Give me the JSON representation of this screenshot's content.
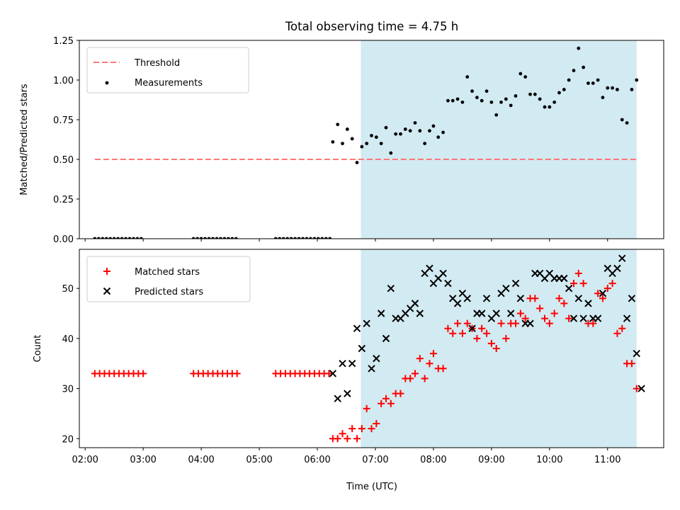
{
  "title": "Total observing time = 4.75 h",
  "xlabel": "Time (UTC)",
  "x_tick_labels": [
    "02:00",
    "03:00",
    "04:00",
    "05:00",
    "06:00",
    "07:00",
    "08:00",
    "09:00",
    "10:00",
    "11:00"
  ],
  "colors": {
    "shade": "#add8e6",
    "threshold": "#ff7777",
    "matched": "#ff0000",
    "predicted": "#000000",
    "measurement": "#000000"
  },
  "chart_data": [
    {
      "type": "scatter",
      "ylabel": "Matched/Predicted stars",
      "xlim": [
        "01:54",
        "11:58"
      ],
      "ylim": [
        0,
        1.25
      ],
      "y_tick_labels": [
        "0.00",
        "0.25",
        "0.50",
        "0.75",
        "1.00",
        "1.25"
      ],
      "shaded_interval": [
        "06:45",
        "11:30"
      ],
      "legend": {
        "placement": "upper-left",
        "entries": [
          "Threshold",
          "Measurements"
        ]
      },
      "threshold": {
        "name": "Threshold",
        "value": 0.5,
        "x_range": [
          "02:10",
          "11:30"
        ]
      },
      "measurements": {
        "name": "Measurements",
        "points": [
          [
            "02:10",
            0
          ],
          [
            "02:14",
            0
          ],
          [
            "02:18",
            0
          ],
          [
            "02:22",
            0
          ],
          [
            "02:26",
            0
          ],
          [
            "02:30",
            0
          ],
          [
            "02:34",
            0
          ],
          [
            "02:38",
            0
          ],
          [
            "02:42",
            0
          ],
          [
            "02:46",
            0
          ],
          [
            "02:50",
            0
          ],
          [
            "02:54",
            0
          ],
          [
            "02:58",
            0
          ],
          [
            "03:52",
            0
          ],
          [
            "03:56",
            0
          ],
          [
            "04:00",
            0
          ],
          [
            "04:04",
            0
          ],
          [
            "04:08",
            0
          ],
          [
            "04:12",
            0
          ],
          [
            "04:16",
            0
          ],
          [
            "04:20",
            0
          ],
          [
            "04:24",
            0
          ],
          [
            "04:28",
            0
          ],
          [
            "04:32",
            0
          ],
          [
            "04:36",
            0
          ],
          [
            "05:17",
            0
          ],
          [
            "05:21",
            0
          ],
          [
            "05:25",
            0
          ],
          [
            "05:29",
            0
          ],
          [
            "05:33",
            0
          ],
          [
            "05:37",
            0
          ],
          [
            "05:41",
            0
          ],
          [
            "05:45",
            0
          ],
          [
            "05:49",
            0
          ],
          [
            "05:53",
            0
          ],
          [
            "05:57",
            0
          ],
          [
            "06:01",
            0
          ],
          [
            "06:05",
            0
          ],
          [
            "06:09",
            0
          ],
          [
            "06:13",
            0
          ],
          [
            "06:16",
            0.61
          ],
          [
            "06:21",
            0.72
          ],
          [
            "06:26",
            0.6
          ],
          [
            "06:31",
            0.69
          ],
          [
            "06:36",
            0.63
          ],
          [
            "06:41",
            0.48
          ],
          [
            "06:46",
            0.58
          ],
          [
            "06:51",
            0.6
          ],
          [
            "06:56",
            0.65
          ],
          [
            "07:01",
            0.64
          ],
          [
            "07:06",
            0.6
          ],
          [
            "07:11",
            0.7
          ],
          [
            "07:16",
            0.54
          ],
          [
            "07:21",
            0.66
          ],
          [
            "07:26",
            0.66
          ],
          [
            "07:31",
            0.69
          ],
          [
            "07:36",
            0.68
          ],
          [
            "07:41",
            0.73
          ],
          [
            "07:46",
            0.68
          ],
          [
            "07:51",
            0.6
          ],
          [
            "07:56",
            0.68
          ],
          [
            "08:00",
            0.71
          ],
          [
            "08:05",
            0.64
          ],
          [
            "08:10",
            0.67
          ],
          [
            "08:15",
            0.87
          ],
          [
            "08:20",
            0.87
          ],
          [
            "08:25",
            0.88
          ],
          [
            "08:30",
            0.86
          ],
          [
            "08:35",
            1.02
          ],
          [
            "08:40",
            0.93
          ],
          [
            "08:45",
            0.89
          ],
          [
            "08:50",
            0.87
          ],
          [
            "08:55",
            0.93
          ],
          [
            "09:00",
            0.86
          ],
          [
            "09:05",
            0.78
          ],
          [
            "09:10",
            0.86
          ],
          [
            "09:15",
            0.88
          ],
          [
            "09:20",
            0.84
          ],
          [
            "09:25",
            0.9
          ],
          [
            "09:30",
            1.04
          ],
          [
            "09:35",
            1.02
          ],
          [
            "09:40",
            0.91
          ],
          [
            "09:45",
            0.91
          ],
          [
            "09:50",
            0.88
          ],
          [
            "09:55",
            0.83
          ],
          [
            "10:00",
            0.83
          ],
          [
            "10:05",
            0.86
          ],
          [
            "10:10",
            0.92
          ],
          [
            "10:15",
            0.94
          ],
          [
            "10:20",
            1.0
          ],
          [
            "10:25",
            1.06
          ],
          [
            "10:30",
            1.2
          ],
          [
            "10:35",
            1.08
          ],
          [
            "10:40",
            0.98
          ],
          [
            "10:45",
            0.98
          ],
          [
            "10:50",
            1.0
          ],
          [
            "10:55",
            0.89
          ],
          [
            "11:00",
            0.95
          ],
          [
            "11:05",
            0.95
          ],
          [
            "11:10",
            0.94
          ],
          [
            "11:15",
            0.75
          ],
          [
            "11:20",
            0.73
          ],
          [
            "11:25",
            0.94
          ],
          [
            "11:30",
            1.0
          ]
        ]
      }
    },
    {
      "type": "scatter",
      "ylabel": "Count",
      "xlim": [
        "01:54",
        "11:58"
      ],
      "ylim": [
        18.2,
        57.8
      ],
      "y_tick_labels": [
        "20",
        "30",
        "40",
        "50"
      ],
      "shaded_interval": [
        "06:45",
        "11:30"
      ],
      "legend": {
        "placement": "upper-left",
        "entries": [
          "Matched stars",
          "Predicted stars"
        ]
      },
      "series": [
        {
          "name": "Matched stars",
          "marker": "plus",
          "points": [
            [
              "02:10",
              33
            ],
            [
              "02:15",
              33
            ],
            [
              "02:20",
              33
            ],
            [
              "02:25",
              33
            ],
            [
              "02:30",
              33
            ],
            [
              "02:35",
              33
            ],
            [
              "02:40",
              33
            ],
            [
              "02:45",
              33
            ],
            [
              "02:50",
              33
            ],
            [
              "02:55",
              33
            ],
            [
              "03:00",
              33
            ],
            [
              "03:52",
              33
            ],
            [
              "03:57",
              33
            ],
            [
              "04:02",
              33
            ],
            [
              "04:07",
              33
            ],
            [
              "04:12",
              33
            ],
            [
              "04:17",
              33
            ],
            [
              "04:22",
              33
            ],
            [
              "04:27",
              33
            ],
            [
              "04:32",
              33
            ],
            [
              "04:37",
              33
            ],
            [
              "05:17",
              33
            ],
            [
              "05:22",
              33
            ],
            [
              "05:27",
              33
            ],
            [
              "05:32",
              33
            ],
            [
              "05:37",
              33
            ],
            [
              "05:42",
              33
            ],
            [
              "05:47",
              33
            ],
            [
              "05:52",
              33
            ],
            [
              "05:57",
              33
            ],
            [
              "06:02",
              33
            ],
            [
              "06:07",
              33
            ],
            [
              "06:12",
              33
            ],
            [
              "06:16",
              20
            ],
            [
              "06:21",
              20
            ],
            [
              "06:26",
              21
            ],
            [
              "06:31",
              20
            ],
            [
              "06:36",
              22
            ],
            [
              "06:41",
              20
            ],
            [
              "06:46",
              22
            ],
            [
              "06:51",
              26
            ],
            [
              "06:56",
              22
            ],
            [
              "07:01",
              23
            ],
            [
              "07:06",
              27
            ],
            [
              "07:11",
              28
            ],
            [
              "07:16",
              27
            ],
            [
              "07:21",
              29
            ],
            [
              "07:26",
              29
            ],
            [
              "07:31",
              32
            ],
            [
              "07:36",
              32
            ],
            [
              "07:41",
              33
            ],
            [
              "07:46",
              36
            ],
            [
              "07:51",
              32
            ],
            [
              "07:56",
              35
            ],
            [
              "08:00",
              37
            ],
            [
              "08:05",
              34
            ],
            [
              "08:10",
              34
            ],
            [
              "08:15",
              42
            ],
            [
              "08:20",
              41
            ],
            [
              "08:25",
              43
            ],
            [
              "08:30",
              41
            ],
            [
              "08:35",
              43
            ],
            [
              "08:40",
              42
            ],
            [
              "08:45",
              40
            ],
            [
              "08:50",
              42
            ],
            [
              "08:55",
              41
            ],
            [
              "09:00",
              39
            ],
            [
              "09:05",
              38
            ],
            [
              "09:10",
              43
            ],
            [
              "09:15",
              40
            ],
            [
              "09:20",
              43
            ],
            [
              "09:25",
              43
            ],
            [
              "09:30",
              45
            ],
            [
              "09:35",
              44
            ],
            [
              "09:40",
              48
            ],
            [
              "09:45",
              48
            ],
            [
              "09:50",
              46
            ],
            [
              "09:55",
              44
            ],
            [
              "10:00",
              43
            ],
            [
              "10:05",
              45
            ],
            [
              "10:10",
              48
            ],
            [
              "10:15",
              47
            ],
            [
              "10:20",
              44
            ],
            [
              "10:25",
              51
            ],
            [
              "10:30",
              53
            ],
            [
              "10:35",
              51
            ],
            [
              "10:40",
              43
            ],
            [
              "10:45",
              43
            ],
            [
              "10:50",
              49
            ],
            [
              "10:55",
              48
            ],
            [
              "11:00",
              50
            ],
            [
              "11:05",
              51
            ],
            [
              "11:10",
              41
            ],
            [
              "11:15",
              42
            ],
            [
              "11:20",
              35
            ],
            [
              "11:25",
              35
            ],
            [
              "11:30",
              30
            ]
          ]
        },
        {
          "name": "Predicted stars",
          "marker": "x",
          "points": [
            [
              "06:16",
              33
            ],
            [
              "06:21",
              28
            ],
            [
              "06:26",
              35
            ],
            [
              "06:31",
              29
            ],
            [
              "06:36",
              35
            ],
            [
              "06:41",
              42
            ],
            [
              "06:46",
              38
            ],
            [
              "06:51",
              43
            ],
            [
              "06:56",
              34
            ],
            [
              "07:01",
              36
            ],
            [
              "07:06",
              45
            ],
            [
              "07:11",
              40
            ],
            [
              "07:16",
              50
            ],
            [
              "07:21",
              44
            ],
            [
              "07:26",
              44
            ],
            [
              "07:31",
              45
            ],
            [
              "07:36",
              46
            ],
            [
              "07:41",
              47
            ],
            [
              "07:46",
              45
            ],
            [
              "07:51",
              53
            ],
            [
              "07:56",
              54
            ],
            [
              "08:00",
              51
            ],
            [
              "08:05",
              52
            ],
            [
              "08:10",
              53
            ],
            [
              "08:15",
              51
            ],
            [
              "08:20",
              48
            ],
            [
              "08:25",
              47
            ],
            [
              "08:30",
              49
            ],
            [
              "08:35",
              48
            ],
            [
              "08:40",
              42
            ],
            [
              "08:45",
              45
            ],
            [
              "08:50",
              45
            ],
            [
              "08:55",
              48
            ],
            [
              "09:00",
              44
            ],
            [
              "09:05",
              45
            ],
            [
              "09:10",
              49
            ],
            [
              "09:15",
              50
            ],
            [
              "09:20",
              45
            ],
            [
              "09:25",
              51
            ],
            [
              "09:30",
              48
            ],
            [
              "09:35",
              43
            ],
            [
              "09:40",
              43
            ],
            [
              "09:45",
              53
            ],
            [
              "09:50",
              53
            ],
            [
              "09:55",
              52
            ],
            [
              "10:00",
              53
            ],
            [
              "10:05",
              52
            ],
            [
              "10:10",
              52
            ],
            [
              "10:15",
              52
            ],
            [
              "10:20",
              50
            ],
            [
              "10:25",
              44
            ],
            [
              "10:30",
              48
            ],
            [
              "10:35",
              44
            ],
            [
              "10:40",
              47
            ],
            [
              "10:45",
              44
            ],
            [
              "10:50",
              44
            ],
            [
              "10:55",
              49
            ],
            [
              "11:00",
              54
            ],
            [
              "11:05",
              53
            ],
            [
              "11:10",
              54
            ],
            [
              "11:15",
              56
            ],
            [
              "11:20",
              44
            ],
            [
              "11:25",
              48
            ],
            [
              "11:30",
              37
            ],
            [
              "11:35",
              30
            ]
          ]
        }
      ]
    }
  ]
}
